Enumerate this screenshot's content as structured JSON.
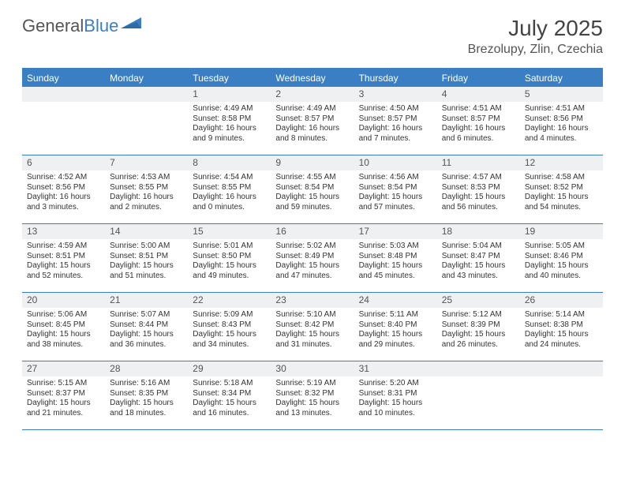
{
  "brand": {
    "part1": "General",
    "part2": "Blue"
  },
  "title": "July 2025",
  "location": "Brezolupy, Zlin, Czechia",
  "colors": {
    "accent": "#3a7fc4",
    "headerBg": "#3a7fc4",
    "headerText": "#ffffff",
    "daynumBg": "#eef0f2",
    "text": "#333333",
    "bg": "#ffffff"
  },
  "dayHeaders": [
    "Sunday",
    "Monday",
    "Tuesday",
    "Wednesday",
    "Thursday",
    "Friday",
    "Saturday"
  ],
  "weeks": [
    [
      {
        "n": "",
        "sunrise": "",
        "sunset": "",
        "daylight": ""
      },
      {
        "n": "",
        "sunrise": "",
        "sunset": "",
        "daylight": ""
      },
      {
        "n": "1",
        "sunrise": "4:49 AM",
        "sunset": "8:58 PM",
        "daylight": "16 hours and 9 minutes."
      },
      {
        "n": "2",
        "sunrise": "4:49 AM",
        "sunset": "8:57 PM",
        "daylight": "16 hours and 8 minutes."
      },
      {
        "n": "3",
        "sunrise": "4:50 AM",
        "sunset": "8:57 PM",
        "daylight": "16 hours and 7 minutes."
      },
      {
        "n": "4",
        "sunrise": "4:51 AM",
        "sunset": "8:57 PM",
        "daylight": "16 hours and 6 minutes."
      },
      {
        "n": "5",
        "sunrise": "4:51 AM",
        "sunset": "8:56 PM",
        "daylight": "16 hours and 4 minutes."
      }
    ],
    [
      {
        "n": "6",
        "sunrise": "4:52 AM",
        "sunset": "8:56 PM",
        "daylight": "16 hours and 3 minutes."
      },
      {
        "n": "7",
        "sunrise": "4:53 AM",
        "sunset": "8:55 PM",
        "daylight": "16 hours and 2 minutes."
      },
      {
        "n": "8",
        "sunrise": "4:54 AM",
        "sunset": "8:55 PM",
        "daylight": "16 hours and 0 minutes."
      },
      {
        "n": "9",
        "sunrise": "4:55 AM",
        "sunset": "8:54 PM",
        "daylight": "15 hours and 59 minutes."
      },
      {
        "n": "10",
        "sunrise": "4:56 AM",
        "sunset": "8:54 PM",
        "daylight": "15 hours and 57 minutes."
      },
      {
        "n": "11",
        "sunrise": "4:57 AM",
        "sunset": "8:53 PM",
        "daylight": "15 hours and 56 minutes."
      },
      {
        "n": "12",
        "sunrise": "4:58 AM",
        "sunset": "8:52 PM",
        "daylight": "15 hours and 54 minutes."
      }
    ],
    [
      {
        "n": "13",
        "sunrise": "4:59 AM",
        "sunset": "8:51 PM",
        "daylight": "15 hours and 52 minutes."
      },
      {
        "n": "14",
        "sunrise": "5:00 AM",
        "sunset": "8:51 PM",
        "daylight": "15 hours and 51 minutes."
      },
      {
        "n": "15",
        "sunrise": "5:01 AM",
        "sunset": "8:50 PM",
        "daylight": "15 hours and 49 minutes."
      },
      {
        "n": "16",
        "sunrise": "5:02 AM",
        "sunset": "8:49 PM",
        "daylight": "15 hours and 47 minutes."
      },
      {
        "n": "17",
        "sunrise": "5:03 AM",
        "sunset": "8:48 PM",
        "daylight": "15 hours and 45 minutes."
      },
      {
        "n": "18",
        "sunrise": "5:04 AM",
        "sunset": "8:47 PM",
        "daylight": "15 hours and 43 minutes."
      },
      {
        "n": "19",
        "sunrise": "5:05 AM",
        "sunset": "8:46 PM",
        "daylight": "15 hours and 40 minutes."
      }
    ],
    [
      {
        "n": "20",
        "sunrise": "5:06 AM",
        "sunset": "8:45 PM",
        "daylight": "15 hours and 38 minutes."
      },
      {
        "n": "21",
        "sunrise": "5:07 AM",
        "sunset": "8:44 PM",
        "daylight": "15 hours and 36 minutes."
      },
      {
        "n": "22",
        "sunrise": "5:09 AM",
        "sunset": "8:43 PM",
        "daylight": "15 hours and 34 minutes."
      },
      {
        "n": "23",
        "sunrise": "5:10 AM",
        "sunset": "8:42 PM",
        "daylight": "15 hours and 31 minutes."
      },
      {
        "n": "24",
        "sunrise": "5:11 AM",
        "sunset": "8:40 PM",
        "daylight": "15 hours and 29 minutes."
      },
      {
        "n": "25",
        "sunrise": "5:12 AM",
        "sunset": "8:39 PM",
        "daylight": "15 hours and 26 minutes."
      },
      {
        "n": "26",
        "sunrise": "5:14 AM",
        "sunset": "8:38 PM",
        "daylight": "15 hours and 24 minutes."
      }
    ],
    [
      {
        "n": "27",
        "sunrise": "5:15 AM",
        "sunset": "8:37 PM",
        "daylight": "15 hours and 21 minutes."
      },
      {
        "n": "28",
        "sunrise": "5:16 AM",
        "sunset": "8:35 PM",
        "daylight": "15 hours and 18 minutes."
      },
      {
        "n": "29",
        "sunrise": "5:18 AM",
        "sunset": "8:34 PM",
        "daylight": "15 hours and 16 minutes."
      },
      {
        "n": "30",
        "sunrise": "5:19 AM",
        "sunset": "8:32 PM",
        "daylight": "15 hours and 13 minutes."
      },
      {
        "n": "31",
        "sunrise": "5:20 AM",
        "sunset": "8:31 PM",
        "daylight": "15 hours and 10 minutes."
      },
      {
        "n": "",
        "sunrise": "",
        "sunset": "",
        "daylight": ""
      },
      {
        "n": "",
        "sunrise": "",
        "sunset": "",
        "daylight": ""
      }
    ]
  ],
  "labels": {
    "sunrise": "Sunrise:",
    "sunset": "Sunset:",
    "daylight": "Daylight:"
  }
}
